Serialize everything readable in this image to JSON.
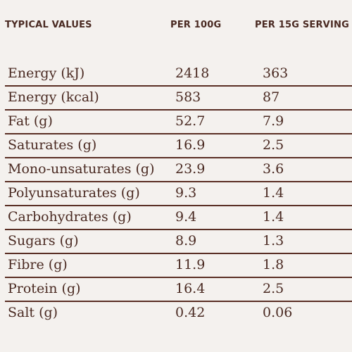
{
  "header": {
    "col1": "TYPICAL VALUES",
    "col2": "PER 100G",
    "col3": "PER 15G SERVING"
  },
  "rows": [
    {
      "label": "Energy (kJ)",
      "per100": "2418",
      "perServing": "363"
    },
    {
      "label": "Energy (kcal)",
      "per100": "583",
      "perServing": "87"
    },
    {
      "label": "Fat (g)",
      "per100": "52.7",
      "perServing": "7.9"
    },
    {
      "label": "Saturates (g)",
      "per100": "16.9",
      "perServing": "2.5"
    },
    {
      "label": "Mono-unsaturates (g)",
      "per100": "23.9",
      "perServing": "3.6"
    },
    {
      "label": "Polyunsaturates (g)",
      "per100": "9.3",
      "perServing": "1.4"
    },
    {
      "label": "Carbohydrates (g)",
      "per100": "9.4",
      "perServing": "1.4"
    },
    {
      "label": "Sugars (g)",
      "per100": "8.9",
      "perServing": "1.3"
    },
    {
      "label": "Fibre (g)",
      "per100": "11.9",
      "perServing": "1.8"
    },
    {
      "label": "Protein (g)",
      "per100": "16.4",
      "perServing": "2.5"
    },
    {
      "label": "Salt (g)",
      "per100": "0.42",
      "perServing": "0.06"
    }
  ],
  "colors": {
    "background": "#f4f1ee",
    "text": "#4a2a22",
    "rule": "#5a2e24"
  }
}
